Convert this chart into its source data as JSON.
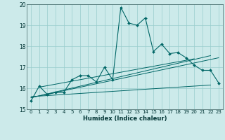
{
  "title": "",
  "xlabel": "Humidex (Indice chaleur)",
  "bg_color": "#cceaea",
  "line_color": "#006666",
  "grid_color": "#99cccc",
  "xlim": [
    -0.5,
    23.5
  ],
  "ylim": [
    15,
    20
  ],
  "yticks": [
    15,
    16,
    17,
    18,
    19,
    20
  ],
  "xticks": [
    0,
    1,
    2,
    3,
    4,
    5,
    6,
    7,
    8,
    9,
    10,
    11,
    12,
    13,
    14,
    15,
    16,
    17,
    18,
    19,
    20,
    21,
    22,
    23
  ],
  "line_main": {
    "x": [
      0,
      1,
      2,
      3,
      4,
      5,
      6,
      7,
      8,
      9,
      10,
      11,
      12,
      13,
      14,
      15,
      16,
      17,
      18,
      19,
      20,
      21,
      22,
      23
    ],
    "y": [
      15.4,
      16.1,
      15.7,
      15.8,
      15.8,
      16.4,
      16.6,
      16.6,
      16.3,
      17.0,
      16.4,
      19.85,
      19.1,
      19.0,
      19.35,
      17.75,
      18.1,
      17.65,
      17.7,
      17.45,
      17.1,
      16.85,
      16.85,
      16.25
    ]
  },
  "line_reg1": {
    "x": [
      0,
      23
    ],
    "y": [
      15.55,
      17.45
    ]
  },
  "line_reg2": {
    "x": [
      0,
      22
    ],
    "y": [
      15.6,
      16.15
    ]
  },
  "line_reg3": {
    "x": [
      0,
      22
    ],
    "y": [
      15.55,
      17.55
    ]
  },
  "line_reg4": {
    "x": [
      1,
      20
    ],
    "y": [
      16.05,
      17.4
    ]
  }
}
